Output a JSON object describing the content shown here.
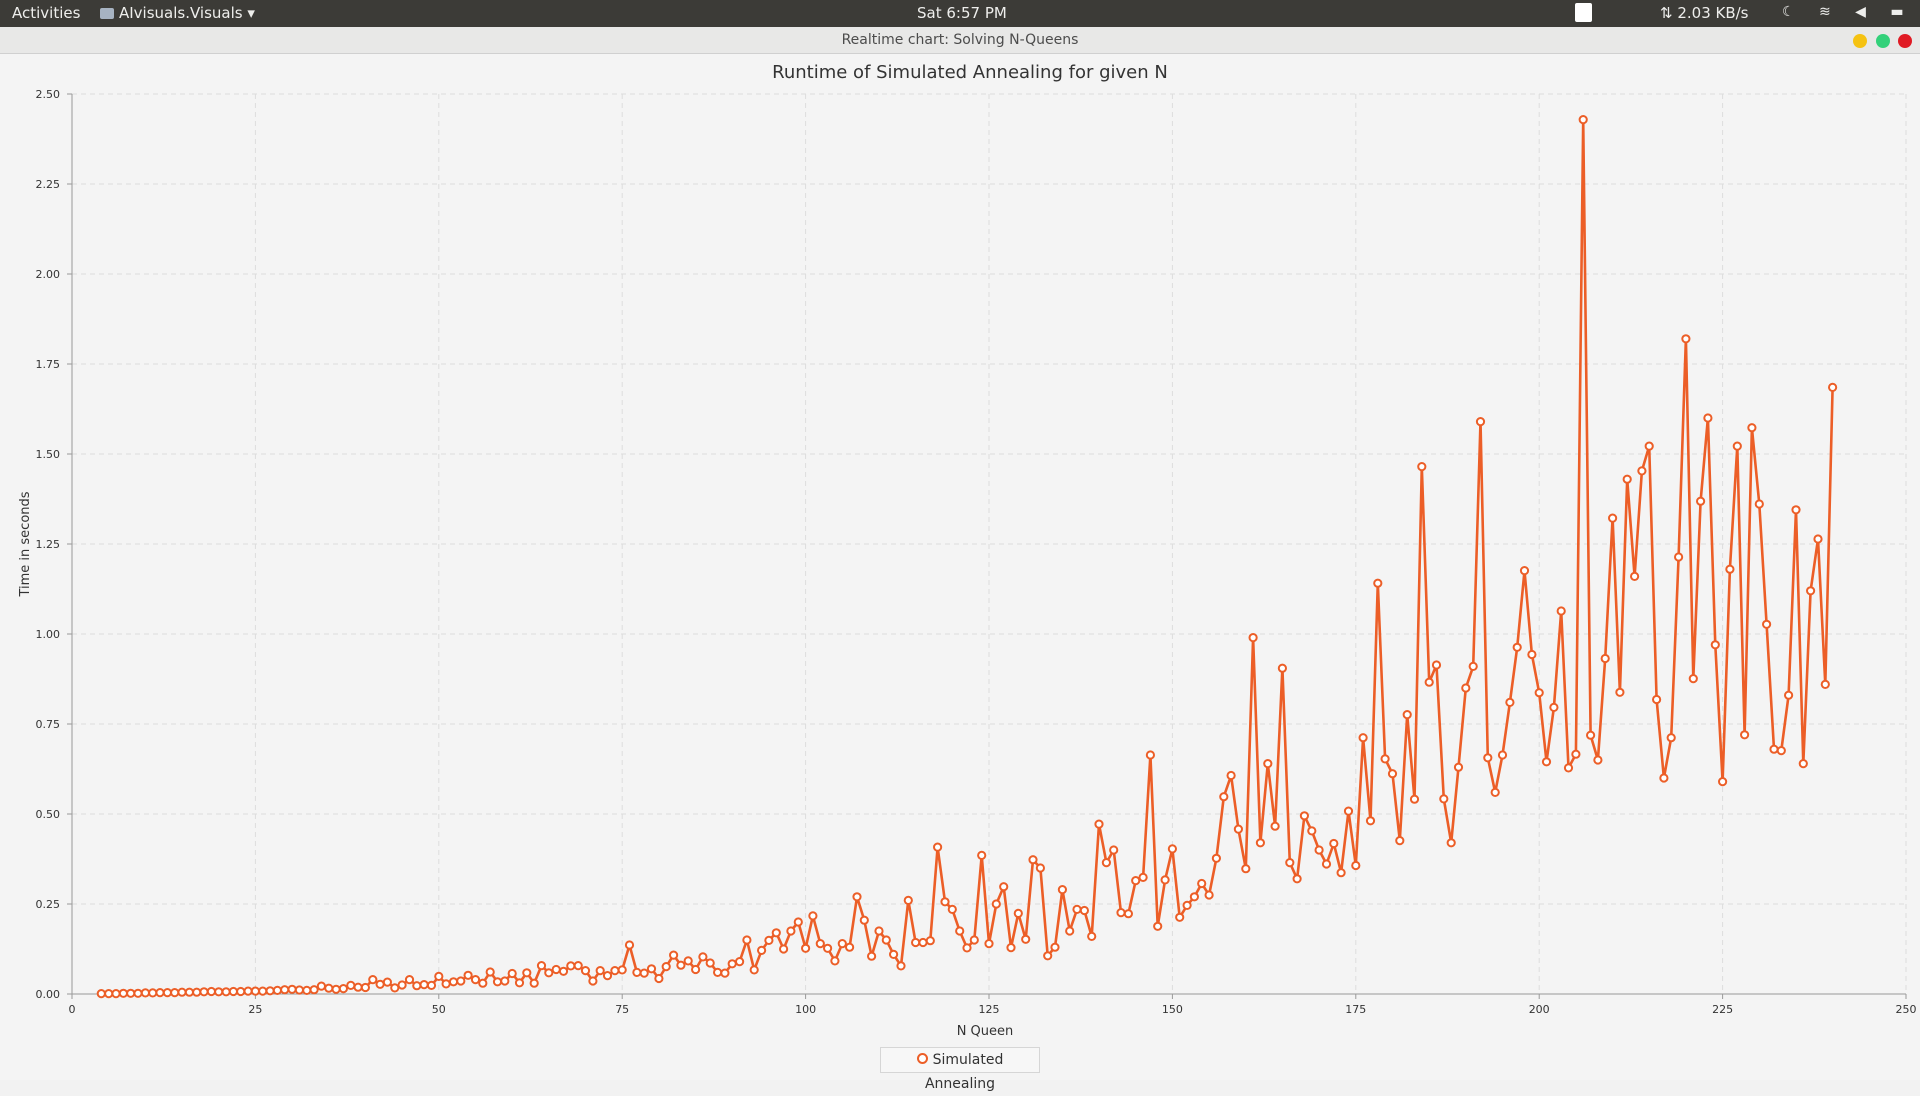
{
  "topbar": {
    "activities": "Activities",
    "app_name": "AIvisuals.Visuals",
    "clock": "Sat  6:57 PM",
    "network_speed": "⇅ 2.03 KB/s"
  },
  "window": {
    "title": "Realtime chart: Solving N-Queens"
  },
  "colors": {
    "series": "#ec5e27",
    "grid": "#dddddd",
    "axis": "#999999"
  },
  "chart_data": {
    "type": "line",
    "title": "Runtime of Simulated Annealing for given N",
    "xlabel": "N Queen",
    "ylabel": "Time in seconds",
    "xlim": [
      0,
      250
    ],
    "ylim": [
      0,
      2.5
    ],
    "xticks": [
      0,
      25,
      50,
      75,
      100,
      125,
      150,
      175,
      200,
      225,
      250
    ],
    "yticks": [
      "0.00",
      "0.25",
      "0.50",
      "0.75",
      "1.00",
      "1.25",
      "1.50",
      "1.75",
      "2.00",
      "2.25",
      "2.50"
    ],
    "legend": "bottom-center",
    "series": [
      {
        "name": "Simulated Annealing",
        "x_start": 4,
        "values": [
          0.001,
          0.001,
          0.001,
          0.002,
          0.002,
          0.002,
          0.003,
          0.003,
          0.004,
          0.004,
          0.004,
          0.005,
          0.005,
          0.005,
          0.006,
          0.007,
          0.006,
          0.006,
          0.007,
          0.007,
          0.008,
          0.008,
          0.008,
          0.009,
          0.01,
          0.012,
          0.013,
          0.011,
          0.01,
          0.012,
          0.022,
          0.016,
          0.013,
          0.015,
          0.024,
          0.019,
          0.018,
          0.04,
          0.027,
          0.033,
          0.017,
          0.025,
          0.04,
          0.023,
          0.026,
          0.024,
          0.049,
          0.028,
          0.034,
          0.036,
          0.052,
          0.04,
          0.03,
          0.061,
          0.034,
          0.036,
          0.057,
          0.031,
          0.059,
          0.03,
          0.079,
          0.059,
          0.068,
          0.063,
          0.078,
          0.079,
          0.065,
          0.036,
          0.065,
          0.051,
          0.065,
          0.067,
          0.136,
          0.06,
          0.058,
          0.07,
          0.043,
          0.076,
          0.108,
          0.08,
          0.092,
          0.068,
          0.103,
          0.086,
          0.06,
          0.058,
          0.084,
          0.09,
          0.15,
          0.067,
          0.121,
          0.149,
          0.17,
          0.125,
          0.175,
          0.2,
          0.127,
          0.217,
          0.14,
          0.127,
          0.092,
          0.14,
          0.13,
          0.27,
          0.205,
          0.105,
          0.175,
          0.15,
          0.11,
          0.078,
          0.26,
          0.143,
          0.143,
          0.148,
          0.408,
          0.256,
          0.235,
          0.175,
          0.128,
          0.15,
          0.385,
          0.14,
          0.25,
          0.298,
          0.129,
          0.224,
          0.152,
          0.373,
          0.35,
          0.106,
          0.13,
          0.29,
          0.175,
          0.235,
          0.232,
          0.16,
          0.472,
          0.365,
          0.4,
          0.226,
          0.223,
          0.315,
          0.324,
          0.664,
          0.188,
          0.317,
          0.403,
          0.213,
          0.246,
          0.27,
          0.307,
          0.275,
          0.377,
          0.548,
          0.607,
          0.458,
          0.348,
          0.99,
          0.42,
          0.64,
          0.466,
          0.905,
          0.365,
          0.32,
          0.495,
          0.453,
          0.4,
          0.361,
          0.418,
          0.337,
          0.508,
          0.357,
          0.712,
          0.481,
          1.141,
          0.653,
          0.612,
          0.426,
          0.776,
          0.541,
          1.465,
          0.866,
          0.914,
          0.542,
          0.42,
          0.63,
          0.85,
          0.91,
          1.59,
          0.656,
          0.56,
          0.664,
          0.81,
          0.963,
          1.176,
          0.943,
          0.837,
          0.645,
          0.796,
          1.064,
          0.628,
          0.666,
          2.429,
          0.719,
          0.65,
          0.932,
          1.322,
          0.838,
          1.43,
          1.16,
          1.453,
          1.522,
          0.818,
          0.6,
          0.712,
          1.214,
          1.82,
          0.876,
          1.369,
          1.6,
          0.97,
          0.59,
          1.18,
          1.522,
          0.72,
          1.573,
          1.361,
          1.027,
          0.68,
          0.676,
          0.83,
          1.345,
          0.64,
          1.12,
          1.264,
          0.86,
          1.685
        ]
      }
    ]
  }
}
